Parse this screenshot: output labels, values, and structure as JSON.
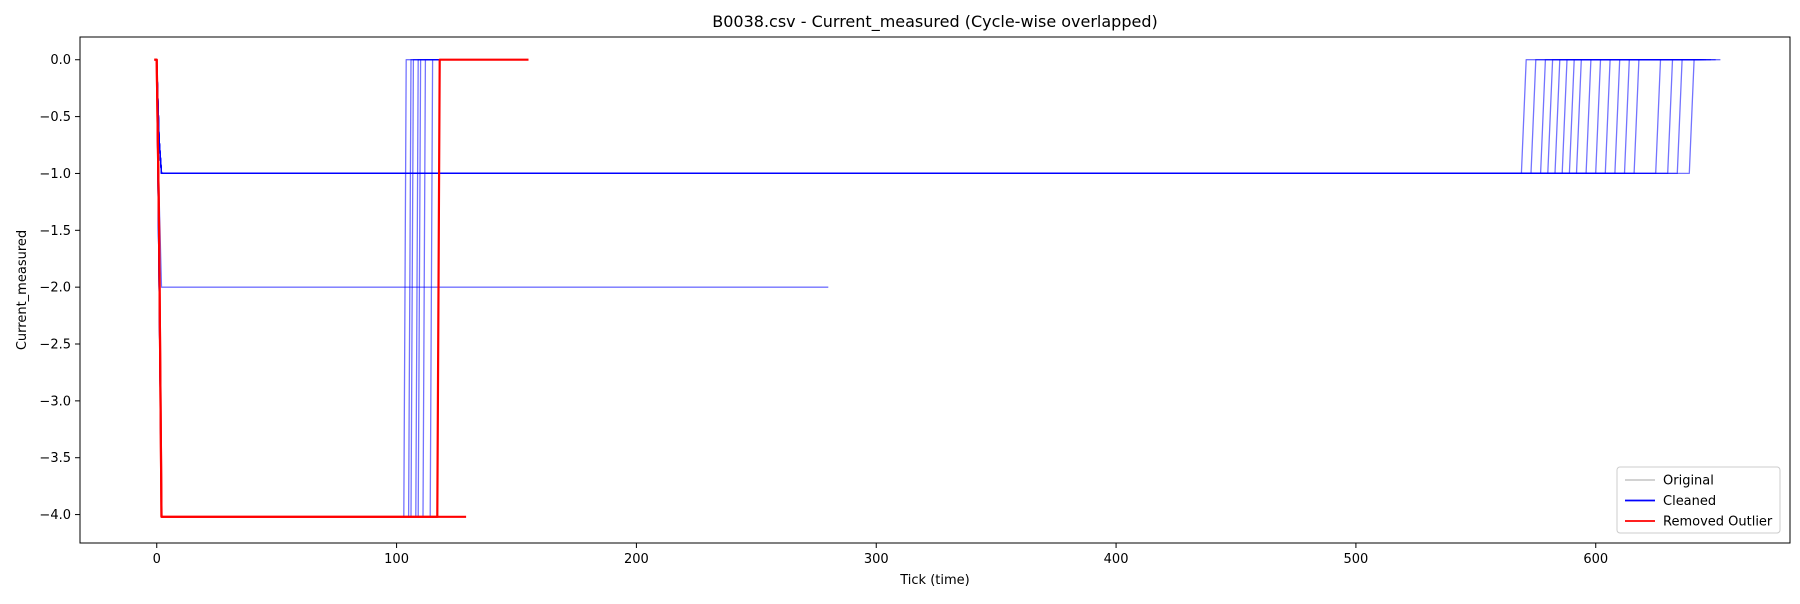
{
  "chart_data": {
    "type": "line",
    "title": "B0038.csv - Current_measured (Cycle-wise overlapped)",
    "xlabel": "Tick (time)",
    "ylabel": "Current_measured",
    "xlim": [
      -32,
      681
    ],
    "ylim": [
      -4.25,
      0.2
    ],
    "xticks": [
      0,
      100,
      200,
      300,
      400,
      500,
      600
    ],
    "yticks": [
      0.0,
      -0.5,
      -1.0,
      -1.5,
      -2.0,
      -2.5,
      -3.0,
      -3.5,
      -4.0
    ],
    "ytick_labels": [
      "0.0",
      "−0.5",
      "−1.0",
      "−1.5",
      "−2.0",
      "−2.5",
      "−3.0",
      "−3.5",
      "−4.0"
    ],
    "grid": false,
    "legend_position": "lower-right",
    "legend": [
      "Original",
      "Cleaned",
      "Removed Outlier"
    ],
    "series": [
      {
        "name": "Cleaned",
        "color": "#0000ff",
        "description_key": "discharge_1A_cycles",
        "lines": [
          {
            "x": [
              0,
              1,
              2,
              569,
              571,
              652
            ],
            "y": [
              0.0,
              -0.7,
              -1.0,
              -1.0,
              0.0,
              0.0
            ]
          },
          {
            "x": [
              0,
              1,
              2,
              573,
              575,
              650
            ],
            "y": [
              0.0,
              -0.7,
              -1.0,
              -1.0,
              0.0,
              0.0
            ]
          },
          {
            "x": [
              0,
              1,
              2,
              577,
              579,
              648
            ],
            "y": [
              0.0,
              -0.7,
              -1.0,
              -1.0,
              0.0,
              0.0
            ]
          },
          {
            "x": [
              0,
              1,
              2,
              580,
              582,
              646
            ],
            "y": [
              0.0,
              -0.7,
              -1.0,
              -1.0,
              0.0,
              0.0
            ]
          },
          {
            "x": [
              0,
              1,
              2,
              583,
              585,
              645
            ],
            "y": [
              0.0,
              -0.7,
              -1.0,
              -1.0,
              0.0,
              0.0
            ]
          },
          {
            "x": [
              0,
              1,
              2,
              586,
              588,
              644
            ],
            "y": [
              0.0,
              -0.7,
              -1.0,
              -1.0,
              0.0,
              0.0
            ]
          },
          {
            "x": [
              0,
              1,
              2,
              589,
              591,
              643
            ],
            "y": [
              0.0,
              -0.7,
              -1.0,
              -1.0,
              0.0,
              0.0
            ]
          },
          {
            "x": [
              0,
              1,
              2,
              592,
              594,
              642
            ],
            "y": [
              0.0,
              -0.7,
              -1.0,
              -1.0,
              0.0,
              0.0
            ]
          },
          {
            "x": [
              0,
              1,
              2,
              596,
              598,
              641
            ],
            "y": [
              0.0,
              -0.7,
              -1.0,
              -1.0,
              0.0,
              0.0
            ]
          },
          {
            "x": [
              0,
              1,
              2,
              600,
              602,
              640
            ],
            "y": [
              0.0,
              -0.7,
              -1.0,
              -1.0,
              0.0,
              0.0
            ]
          },
          {
            "x": [
              0,
              1,
              2,
              604,
              606,
              640
            ],
            "y": [
              0.0,
              -0.7,
              -1.0,
              -1.0,
              0.0,
              0.0
            ]
          },
          {
            "x": [
              0,
              1,
              2,
              608,
              610,
              640
            ],
            "y": [
              0.0,
              -0.7,
              -1.0,
              -1.0,
              0.0,
              0.0
            ]
          },
          {
            "x": [
              0,
              1,
              2,
              612,
              614,
              640
            ],
            "y": [
              0.0,
              -0.7,
              -1.0,
              -1.0,
              0.0,
              0.0
            ]
          },
          {
            "x": [
              0,
              1,
              2,
              616,
              618,
              640
            ],
            "y": [
              0.0,
              -0.7,
              -1.0,
              -1.0,
              0.0,
              0.0
            ]
          },
          {
            "x": [
              0,
              1,
              2,
              625,
              627,
              640
            ],
            "y": [
              0.0,
              -0.7,
              -1.0,
              -1.0,
              0.0,
              0.0
            ]
          },
          {
            "x": [
              0,
              1,
              2,
              630,
              632,
              640
            ],
            "y": [
              0.0,
              -0.7,
              -1.0,
              -1.0,
              0.0,
              0.0
            ]
          },
          {
            "x": [
              0,
              1,
              2,
              634,
              636,
              640
            ],
            "y": [
              0.0,
              -0.7,
              -1.0,
              -1.0,
              0.0,
              0.0
            ]
          },
          {
            "x": [
              0,
              1,
              2,
              639,
              641,
              644
            ],
            "y": [
              0.0,
              -0.7,
              -1.0,
              -1.0,
              0.0,
              0.0
            ]
          },
          {
            "x": [
              0,
              1,
              2,
              280
            ],
            "y": [
              0.0,
              -1.2,
              -2.0,
              -2.0
            ]
          },
          {
            "x": [
              0,
              1,
              2,
              103,
              104,
              118
            ],
            "y": [
              0.0,
              -2.0,
              -4.02,
              -4.02,
              0.0,
              0.0
            ]
          },
          {
            "x": [
              0,
              1,
              2,
              105,
              106,
              118
            ],
            "y": [
              0.0,
              -2.0,
              -4.02,
              -4.02,
              0.0,
              0.0
            ]
          },
          {
            "x": [
              0,
              1,
              2,
              106,
              107,
              118
            ],
            "y": [
              0.0,
              -2.0,
              -4.02,
              -4.02,
              0.0,
              0.0
            ]
          },
          {
            "x": [
              0,
              1,
              2,
              108,
              109,
              118
            ],
            "y": [
              0.0,
              -2.0,
              -4.02,
              -4.02,
              0.0,
              0.0
            ]
          },
          {
            "x": [
              0,
              1,
              2,
              109,
              110,
              118
            ],
            "y": [
              0.0,
              -2.0,
              -4.02,
              -4.02,
              0.0,
              0.0
            ]
          },
          {
            "x": [
              0,
              1,
              2,
              111,
              112,
              118
            ],
            "y": [
              0.0,
              -2.0,
              -4.02,
              -4.02,
              0.0,
              0.0
            ]
          },
          {
            "x": [
              0,
              1,
              2,
              114,
              115,
              118
            ],
            "y": [
              0.0,
              -2.0,
              -4.02,
              -4.02,
              0.0,
              0.0
            ]
          }
        ]
      },
      {
        "name": "Removed Outlier",
        "color": "#ff0000",
        "lines": [
          {
            "x": [
              -1,
              0,
              1,
              2,
              117,
              118,
              155
            ],
            "y": [
              0.0,
              0.0,
              -1.5,
              -4.02,
              -4.02,
              0.0,
              0.0
            ]
          },
          {
            "x": [
              -1,
              0,
              1,
              2,
              129
            ],
            "y": [
              0.0,
              0.0,
              -1.5,
              -4.02,
              -4.02
            ]
          }
        ]
      }
    ]
  }
}
